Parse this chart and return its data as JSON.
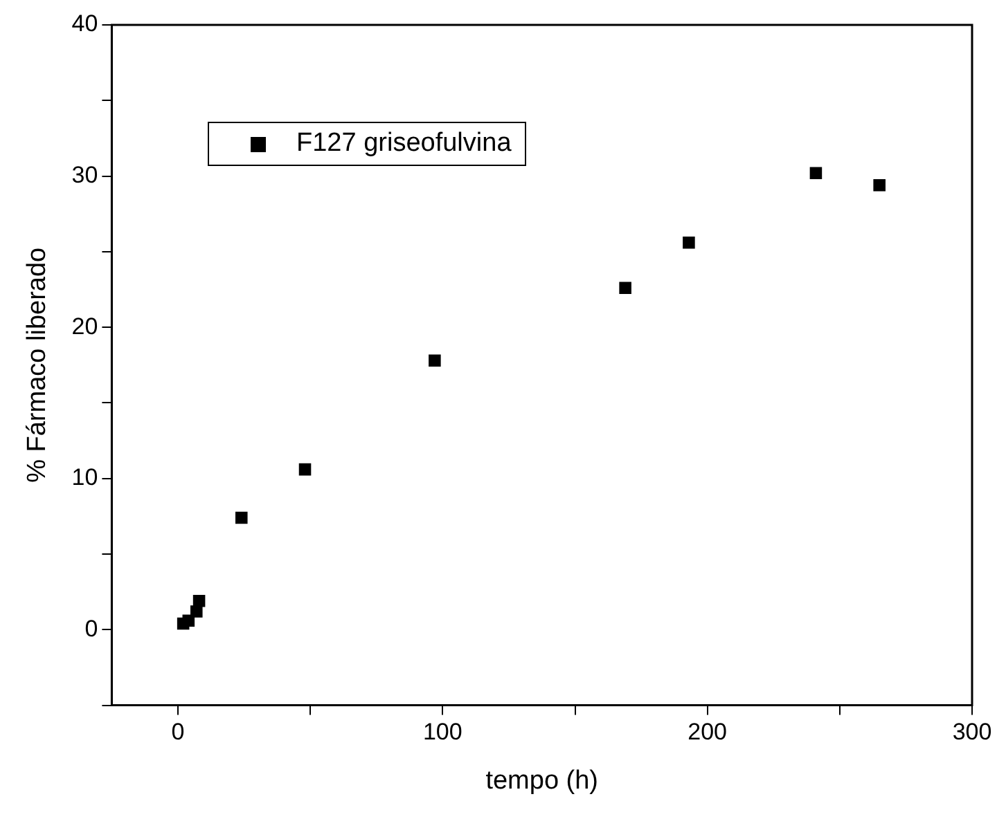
{
  "chart_data": {
    "type": "scatter",
    "xlabel": "tempo (h)",
    "ylabel": "% Fármaco liberado",
    "x": [
      2,
      4,
      6,
      7,
      8,
      9,
      24,
      48,
      97,
      169,
      193,
      241,
      265
    ],
    "series": [
      {
        "name": "F127 griseofulvina",
        "color": "#000000",
        "values": [
          0.4,
          0.6,
          null,
          1.2,
          1.9,
          null,
          7.4,
          10.6,
          17.8,
          22.6,
          25.6,
          30.2,
          29.4
        ]
      }
    ],
    "xlim": [
      -25,
      300
    ],
    "ylim": [
      -5,
      40
    ],
    "xticks": [
      0,
      {
        "value": 50,
        "label": null
      },
      100,
      {
        "value": 150,
        "label": null
      },
      200,
      {
        "value": 250,
        "label": null
      },
      300
    ],
    "yticks": [
      {
        "value": -5,
        "label": null
      },
      0,
      {
        "value": 5,
        "label": null
      },
      10,
      {
        "value": 15,
        "label": null
      },
      20,
      {
        "value": 25,
        "label": null
      },
      30,
      {
        "value": 35,
        "label": null
      },
      40
    ],
    "marker": "square",
    "legend": "top left",
    "grid": false
  }
}
